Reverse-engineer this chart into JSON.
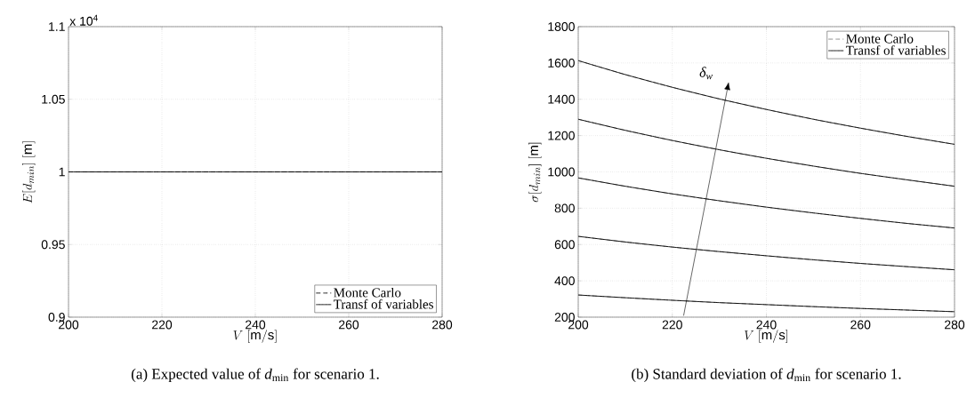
{
  "chart_data": [
    {
      "type": "line",
      "xlabel": "V\\ [\\mathrm{m/s}]",
      "ylabel": "E[d_{min}]\\ [\\mathrm{m}]",
      "annotations": [
        "x 10$^{4}$",
        "(a) Expected value of *d*$_{min}$ for scenario 1."
      ],
      "x": [
        200,
        220,
        240,
        260,
        280
      ],
      "series": [
        {
          "name": "Monte Carlo",
          "color": "#000000",
          "line_style": "dashed",
          "values": [
            1,
            1,
            1,
            1,
            1
          ]
        },
        {
          "name": "Transf of variables",
          "color": "#000000",
          "line_style": "solid",
          "values": [
            1,
            1,
            1,
            1,
            1
          ]
        }
      ],
      "xlim": [
        200,
        280
      ],
      "xticks": [
        200,
        220,
        240,
        260,
        280
      ],
      "ylim": [
        0.9,
        1.1
      ],
      "yticks": [
        0.9,
        0.95,
        1,
        1.05,
        1.1
      ],
      "grid": true,
      "legend": "bottom right",
      "marker": "none"
    },
    {
      "type": "line",
      "xlabel": "V\\ [\\mathrm{m/s}]",
      "ylabel": "\\sigma[d_{min}]\\ [\\mathrm{m}]",
      "annotations": [
        "δ$_{w}$",
        "(b) Standard deviation of *d*$_{min}$ for scenario 1."
      ],
      "x": [
        200,
        210,
        220,
        230,
        240,
        250,
        260,
        270,
        280
      ],
      "series": [
        {
          "name": "Monte Carlo",
          "color": "#808080",
          "line_style": "dashed",
          "values": [
            322,
            307,
            293,
            280,
            269,
            258,
            248,
            239,
            230
          ]
        },
        {
          "name": "Transf of variables",
          "color": "#000000",
          "line_style": "solid",
          "values": [
            322,
            307,
            293,
            280,
            269,
            258,
            248,
            239,
            230
          ]
        },
        {
          "color": "#808080",
          "line_style": "dashed",
          "values": [
            645,
            614,
            586,
            561,
            538,
            516,
            496,
            478,
            461
          ]
        },
        {
          "color": "#000000",
          "line_style": "solid",
          "values": [
            645,
            614,
            586,
            561,
            538,
            516,
            496,
            478,
            461
          ]
        },
        {
          "color": "#808080",
          "line_style": "dashed",
          "values": [
            967,
            921,
            879,
            841,
            806,
            774,
            744,
            716,
            691
          ]
        },
        {
          "color": "#000000",
          "line_style": "solid",
          "values": [
            967,
            921,
            879,
            841,
            806,
            774,
            744,
            716,
            691
          ]
        },
        {
          "color": "#808080",
          "line_style": "dashed",
          "values": [
            1290,
            1229,
            1173,
            1122,
            1075,
            1032,
            992,
            956,
            921
          ]
        },
        {
          "color": "#000000",
          "line_style": "solid",
          "values": [
            1290,
            1229,
            1173,
            1122,
            1075,
            1032,
            992,
            956,
            921
          ]
        },
        {
          "color": "#808080",
          "line_style": "dashed",
          "values": [
            1613,
            1536,
            1466,
            1402,
            1344,
            1290,
            1241,
            1195,
            1152
          ]
        },
        {
          "color": "#000000",
          "line_style": "solid",
          "values": [
            1613,
            1536,
            1466,
            1402,
            1344,
            1290,
            1241,
            1195,
            1152
          ]
        }
      ],
      "xlim": [
        200,
        280
      ],
      "xticks": [
        200,
        220,
        240,
        260,
        280
      ],
      "ylim": [
        200,
        1800
      ],
      "yticks": [
        200,
        400,
        600,
        800,
        1000,
        1200,
        1400,
        1600,
        1800
      ],
      "grid": true,
      "legend": "top right",
      "marker": "none"
    }
  ]
}
